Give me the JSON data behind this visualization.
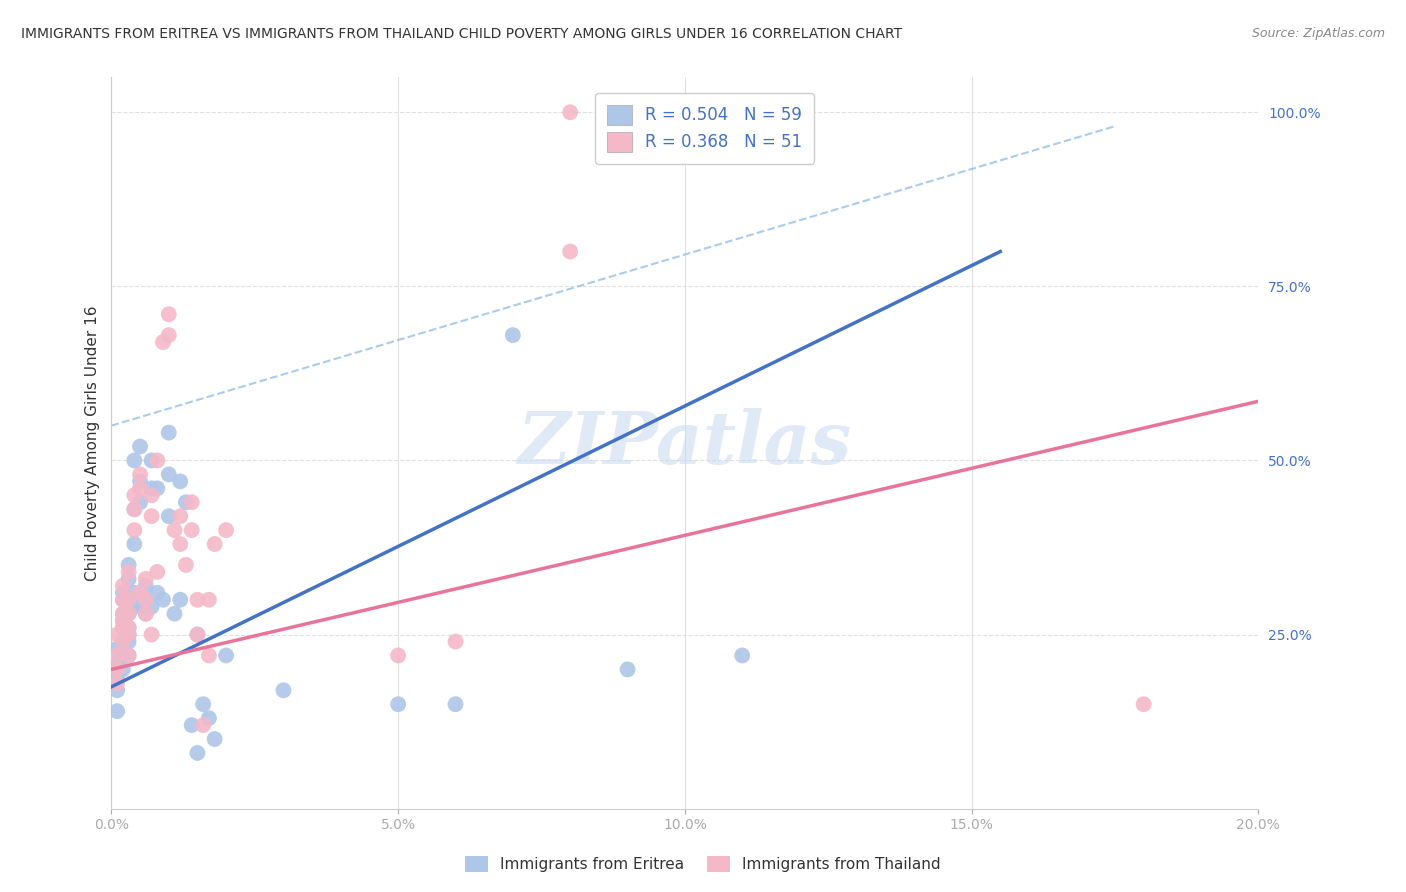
{
  "title": "IMMIGRANTS FROM ERITREA VS IMMIGRANTS FROM THAILAND CHILD POVERTY AMONG GIRLS UNDER 16 CORRELATION CHART",
  "source": "Source: ZipAtlas.com",
  "ylabel": "Child Poverty Among Girls Under 16",
  "xlim": [
    0.0,
    0.2
  ],
  "ylim": [
    0.0,
    1.05
  ],
  "xtick_labels": [
    "0.0%",
    "5.0%",
    "10.0%",
    "15.0%",
    "20.0%"
  ],
  "xtick_vals": [
    0.0,
    0.05,
    0.1,
    0.15,
    0.2
  ],
  "ytick_labels": [
    "25.0%",
    "50.0%",
    "75.0%",
    "100.0%"
  ],
  "ytick_vals": [
    0.25,
    0.5,
    0.75,
    1.0
  ],
  "legend_eritrea": "R = 0.504   N = 59",
  "legend_thailand": "R = 0.368   N = 51",
  "eritrea_color": "#aec6e8",
  "thailand_color": "#f4b8c8",
  "eritrea_line_color": "#4472c4",
  "thailand_line_color": "#e87499",
  "ref_line_color": "#96bfe6",
  "watermark_color": "#c8d8f0",
  "watermark": "ZIPatlas",
  "eritrea_scatter": [
    [
      0.001,
      0.17
    ],
    [
      0.001,
      0.14
    ],
    [
      0.001,
      0.19
    ],
    [
      0.001,
      0.21
    ],
    [
      0.001,
      0.23
    ],
    [
      0.002,
      0.26
    ],
    [
      0.002,
      0.28
    ],
    [
      0.002,
      0.24
    ],
    [
      0.002,
      0.22
    ],
    [
      0.002,
      0.3
    ],
    [
      0.002,
      0.31
    ],
    [
      0.002,
      0.27
    ],
    [
      0.002,
      0.2
    ],
    [
      0.003,
      0.28
    ],
    [
      0.003,
      0.29
    ],
    [
      0.003,
      0.26
    ],
    [
      0.003,
      0.25
    ],
    [
      0.003,
      0.22
    ],
    [
      0.003,
      0.24
    ],
    [
      0.003,
      0.33
    ],
    [
      0.003,
      0.35
    ],
    [
      0.004,
      0.29
    ],
    [
      0.004,
      0.31
    ],
    [
      0.004,
      0.38
    ],
    [
      0.004,
      0.43
    ],
    [
      0.004,
      0.5
    ],
    [
      0.005,
      0.29
    ],
    [
      0.005,
      0.44
    ],
    [
      0.005,
      0.47
    ],
    [
      0.005,
      0.52
    ],
    [
      0.006,
      0.3
    ],
    [
      0.006,
      0.28
    ],
    [
      0.006,
      0.32
    ],
    [
      0.007,
      0.29
    ],
    [
      0.007,
      0.46
    ],
    [
      0.007,
      0.5
    ],
    [
      0.008,
      0.31
    ],
    [
      0.008,
      0.46
    ],
    [
      0.009,
      0.3
    ],
    [
      0.01,
      0.54
    ],
    [
      0.01,
      0.42
    ],
    [
      0.01,
      0.48
    ],
    [
      0.011,
      0.28
    ],
    [
      0.012,
      0.47
    ],
    [
      0.012,
      0.3
    ],
    [
      0.013,
      0.44
    ],
    [
      0.014,
      0.12
    ],
    [
      0.015,
      0.08
    ],
    [
      0.015,
      0.25
    ],
    [
      0.016,
      0.15
    ],
    [
      0.017,
      0.13
    ],
    [
      0.018,
      0.1
    ],
    [
      0.02,
      0.22
    ],
    [
      0.03,
      0.17
    ],
    [
      0.05,
      0.15
    ],
    [
      0.06,
      0.15
    ],
    [
      0.07,
      0.68
    ],
    [
      0.09,
      0.2
    ],
    [
      0.11,
      0.22
    ]
  ],
  "thailand_scatter": [
    [
      0.001,
      0.18
    ],
    [
      0.001,
      0.2
    ],
    [
      0.001,
      0.22
    ],
    [
      0.001,
      0.25
    ],
    [
      0.002,
      0.26
    ],
    [
      0.002,
      0.28
    ],
    [
      0.002,
      0.24
    ],
    [
      0.002,
      0.3
    ],
    [
      0.002,
      0.32
    ],
    [
      0.002,
      0.27
    ],
    [
      0.003,
      0.28
    ],
    [
      0.003,
      0.3
    ],
    [
      0.003,
      0.26
    ],
    [
      0.003,
      0.25
    ],
    [
      0.003,
      0.22
    ],
    [
      0.003,
      0.34
    ],
    [
      0.004,
      0.4
    ],
    [
      0.004,
      0.43
    ],
    [
      0.004,
      0.45
    ],
    [
      0.005,
      0.31
    ],
    [
      0.005,
      0.46
    ],
    [
      0.005,
      0.48
    ],
    [
      0.006,
      0.3
    ],
    [
      0.006,
      0.28
    ],
    [
      0.006,
      0.33
    ],
    [
      0.007,
      0.25
    ],
    [
      0.007,
      0.42
    ],
    [
      0.007,
      0.45
    ],
    [
      0.008,
      0.34
    ],
    [
      0.008,
      0.5
    ],
    [
      0.009,
      0.67
    ],
    [
      0.01,
      0.68
    ],
    [
      0.01,
      0.71
    ],
    [
      0.011,
      0.4
    ],
    [
      0.012,
      0.38
    ],
    [
      0.012,
      0.42
    ],
    [
      0.013,
      0.35
    ],
    [
      0.014,
      0.4
    ],
    [
      0.014,
      0.44
    ],
    [
      0.015,
      0.3
    ],
    [
      0.015,
      0.25
    ],
    [
      0.016,
      0.12
    ],
    [
      0.017,
      0.22
    ],
    [
      0.017,
      0.3
    ],
    [
      0.018,
      0.38
    ],
    [
      0.02,
      0.4
    ],
    [
      0.05,
      0.22
    ],
    [
      0.06,
      0.24
    ],
    [
      0.08,
      1.0
    ],
    [
      0.08,
      0.8
    ],
    [
      0.18,
      0.15
    ]
  ],
  "eritrea_line_x": [
    0.0,
    0.155
  ],
  "eritrea_line_y": [
    0.175,
    0.8
  ],
  "thailand_line_x": [
    0.0,
    0.2
  ],
  "thailand_line_y": [
    0.2,
    0.585
  ],
  "ref_line_x": [
    0.0,
    0.175
  ],
  "ref_line_y": [
    0.55,
    0.98
  ],
  "background_color": "#ffffff",
  "grid_color": "#e0e0e0",
  "title_fontsize": 10,
  "tick_label_color": "#4472c4"
}
